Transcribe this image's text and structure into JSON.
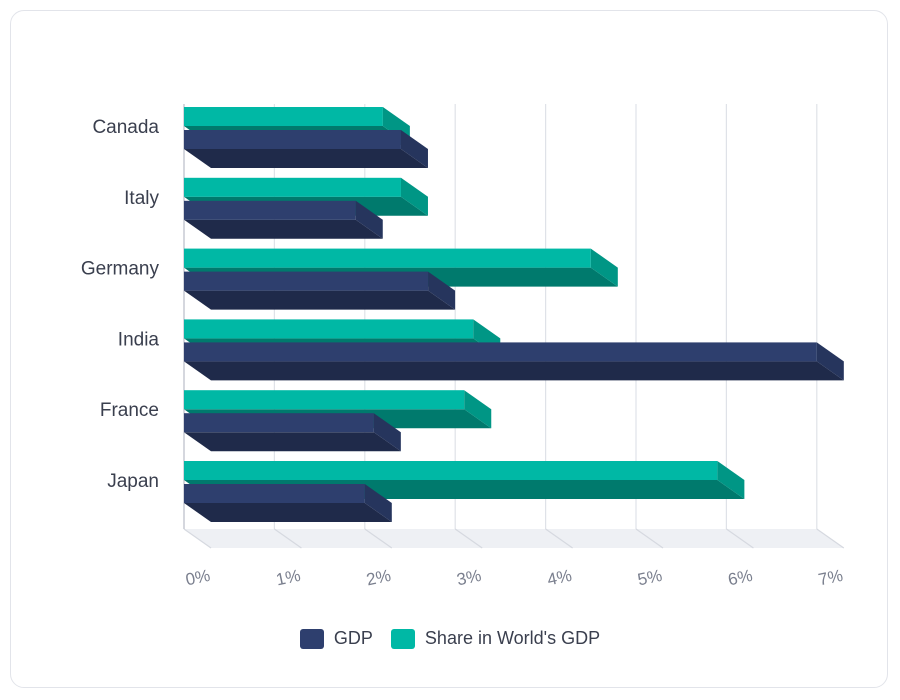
{
  "chart_data": {
    "type": "bar",
    "orientation": "horizontal",
    "style": "3d",
    "categories": [
      "Canada",
      "Italy",
      "Germany",
      "India",
      "France",
      "Japan"
    ],
    "series": [
      {
        "name": "GDP",
        "color": "#2e3f6e",
        "values": [
          2.4,
          1.9,
          2.7,
          7.0,
          2.1,
          2.0
        ]
      },
      {
        "name": "Share in World's GDP",
        "color": "#00b8a5",
        "values": [
          2.2,
          2.4,
          4.5,
          3.2,
          3.1,
          5.9
        ]
      }
    ],
    "xticks": [
      "0%",
      "1%",
      "2%",
      "3%",
      "4%",
      "5%",
      "6%",
      "7%"
    ],
    "xlim": [
      0,
      7
    ],
    "grid": true,
    "legend_position": "bottom"
  },
  "legend": {
    "gdp_label": "GDP",
    "share_label": "Share in World's GDP"
  }
}
